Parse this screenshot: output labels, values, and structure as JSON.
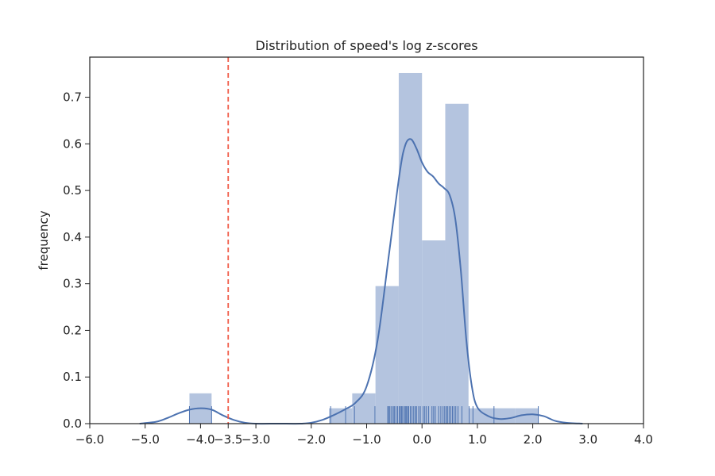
{
  "chart_data": {
    "type": "histogram",
    "title": "Distribution of speed's log z-scores",
    "xlabel": "",
    "ylabel": "frequency",
    "xlim": [
      -6.0,
      4.0
    ],
    "ylim": [
      0.0,
      0.786
    ],
    "x_ticks": [
      -6.0,
      -5.0,
      -4.0,
      -3.5,
      -3.0,
      -2.0,
      -1.0,
      0.0,
      1.0,
      2.0,
      3.0,
      4.0
    ],
    "x_tick_labels": [
      "−6.0",
      "−5.0",
      "−4.0",
      "−3.5",
      "−3.0",
      "−2.0",
      "−1.0",
      "0.0",
      "1.0",
      "2.0",
      "3.0",
      "4.0"
    ],
    "y_ticks": [
      0.0,
      0.1,
      0.2,
      0.3,
      0.4,
      0.5,
      0.6,
      0.7
    ],
    "y_tick_labels": [
      "0.0",
      "0.1",
      "0.2",
      "0.3",
      "0.4",
      "0.5",
      "0.6",
      "0.7"
    ],
    "grid": false,
    "bars": [
      {
        "x0": -4.2,
        "x1": -3.8,
        "value": 0.065
      },
      {
        "x0": -1.68,
        "x1": -1.26,
        "value": 0.033
      },
      {
        "x0": -1.26,
        "x1": -0.84,
        "value": 0.065
      },
      {
        "x0": -0.84,
        "x1": -0.42,
        "value": 0.295
      },
      {
        "x0": -0.42,
        "x1": 0.0,
        "value": 0.752
      },
      {
        "x0": 0.0,
        "x1": 0.42,
        "value": 0.393
      },
      {
        "x0": 0.42,
        "x1": 0.84,
        "value": 0.686
      },
      {
        "x0": 0.84,
        "x1": 1.26,
        "value": 0.033
      },
      {
        "x0": 1.26,
        "x1": 1.68,
        "value": 0.033
      },
      {
        "x0": 1.68,
        "x1": 2.1,
        "value": 0.033
      }
    ],
    "kde": {
      "x": [
        -5.1,
        -4.8,
        -4.6,
        -4.4,
        -4.2,
        -4.0,
        -3.8,
        -3.6,
        -3.4,
        -3.2,
        -3.0,
        -2.6,
        -2.2,
        -2.0,
        -1.8,
        -1.6,
        -1.4,
        -1.2,
        -1.0,
        -0.8,
        -0.6,
        -0.4,
        -0.3,
        -0.2,
        -0.1,
        0.0,
        0.1,
        0.2,
        0.3,
        0.4,
        0.5,
        0.6,
        0.7,
        0.8,
        0.9,
        1.0,
        1.2,
        1.4,
        1.6,
        1.8,
        2.0,
        2.2,
        2.4,
        2.6,
        2.9
      ],
      "y": [
        0.0,
        0.004,
        0.012,
        0.022,
        0.03,
        0.033,
        0.03,
        0.018,
        0.008,
        0.002,
        0.0,
        0.0,
        0.0,
        0.002,
        0.008,
        0.018,
        0.03,
        0.045,
        0.08,
        0.18,
        0.36,
        0.54,
        0.598,
        0.61,
        0.59,
        0.56,
        0.54,
        0.53,
        0.515,
        0.505,
        0.49,
        0.44,
        0.33,
        0.18,
        0.08,
        0.035,
        0.016,
        0.01,
        0.012,
        0.018,
        0.02,
        0.016,
        0.006,
        0.002,
        0.0
      ]
    },
    "rug": [
      -4.2,
      -3.8,
      -1.65,
      -1.38,
      -1.22,
      -0.85,
      -0.62,
      -0.6,
      -0.58,
      -0.55,
      -0.52,
      -0.5,
      -0.47,
      -0.44,
      -0.41,
      -0.39,
      -0.37,
      -0.35,
      -0.32,
      -0.3,
      -0.28,
      -0.26,
      -0.24,
      -0.21,
      -0.18,
      -0.15,
      -0.12,
      -0.1,
      -0.06,
      -0.03,
      0.02,
      0.05,
      0.08,
      0.12,
      0.18,
      0.21,
      0.24,
      0.3,
      0.34,
      0.38,
      0.41,
      0.44,
      0.46,
      0.49,
      0.52,
      0.55,
      0.58,
      0.61,
      0.65,
      0.72,
      0.85,
      0.92,
      1.3,
      2.1
    ],
    "threshold_line": {
      "x": -3.5,
      "style": "dashed"
    },
    "colors": {
      "bar": "#b4c4df",
      "kde_line": "#4c72b0",
      "rug": "#4c72b0",
      "threshold": "#f05d4a",
      "axes": "#222222"
    }
  }
}
